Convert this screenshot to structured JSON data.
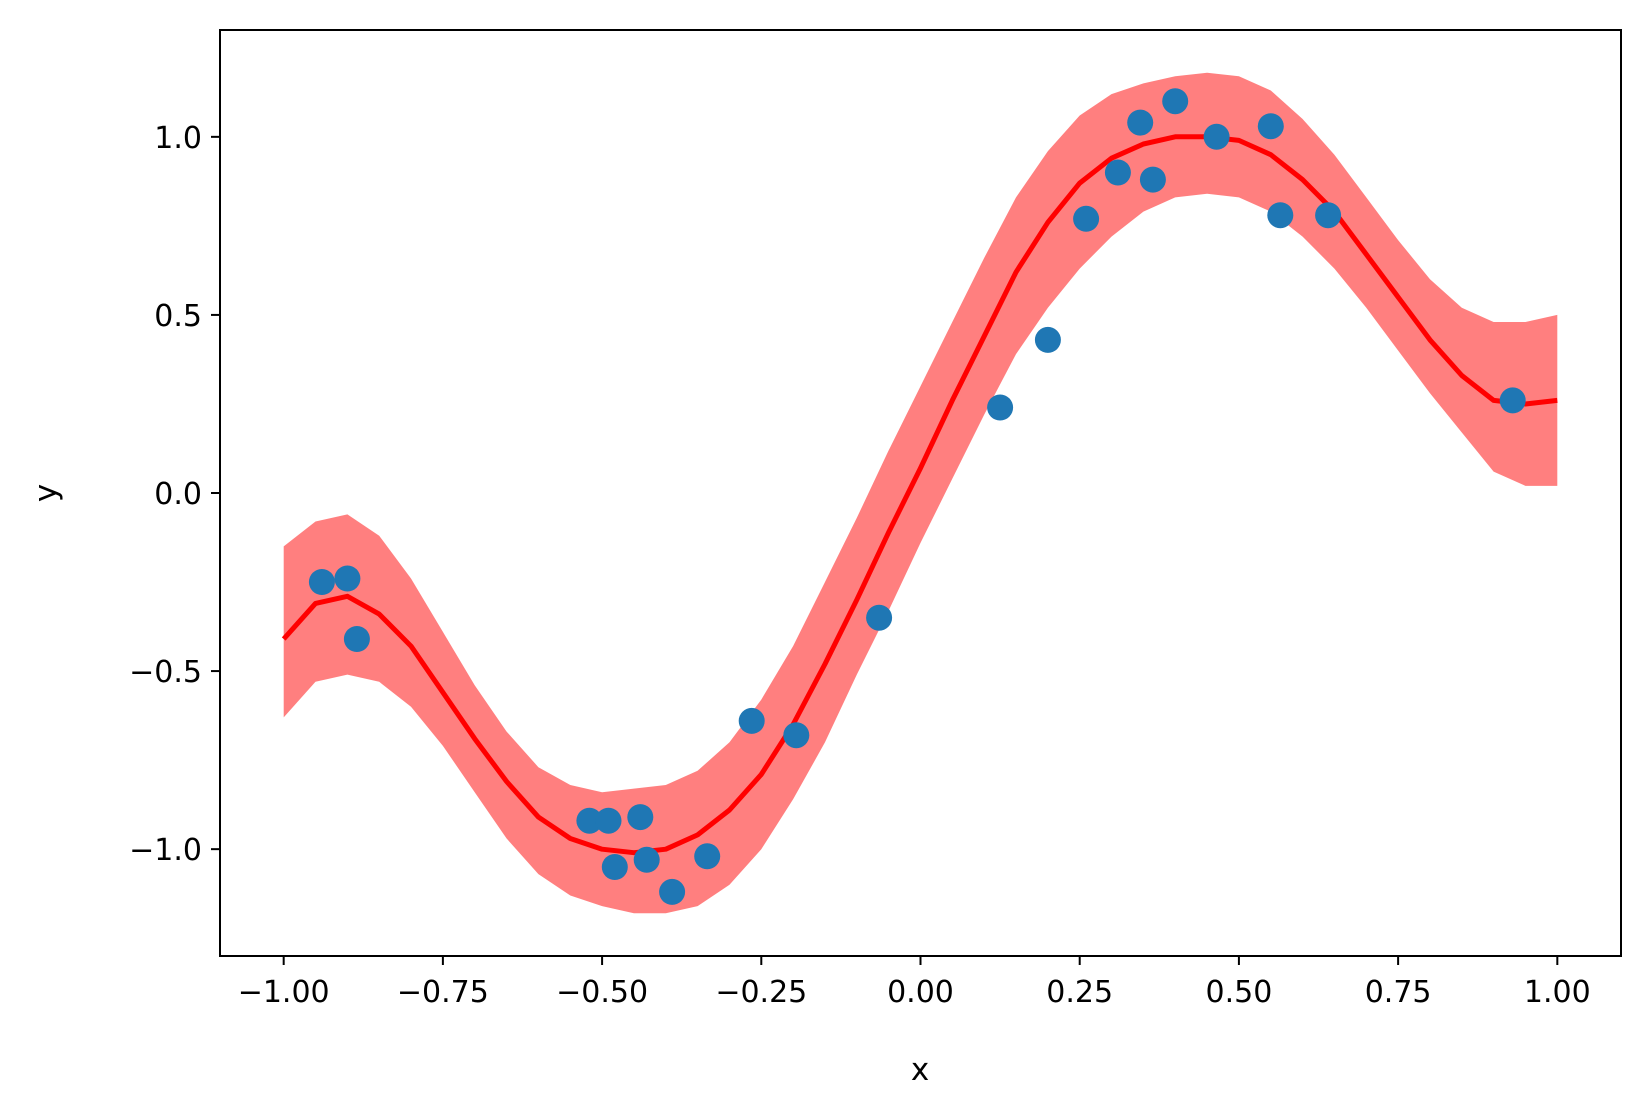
{
  "chart_data": {
    "type": "scatter",
    "title": "",
    "xlabel": "x",
    "ylabel": "y",
    "xlim": [
      -1.1,
      1.1
    ],
    "ylim": [
      -1.3,
      1.3
    ],
    "grid": false,
    "x_ticks": [
      -1.0,
      -0.75,
      -0.5,
      -0.25,
      0.0,
      0.25,
      0.5,
      0.75,
      1.0
    ],
    "x_tick_labels": [
      "−1.00",
      "−0.75",
      "−0.50",
      "−0.25",
      "0.00",
      "0.25",
      "0.50",
      "0.75",
      "1.00"
    ],
    "y_ticks": [
      -1.0,
      -0.5,
      0.0,
      0.5,
      1.0
    ],
    "y_tick_labels": [
      "−1.0",
      "−0.5",
      "0.0",
      "0.5",
      "1.0"
    ],
    "series": [
      {
        "kind": "fill_between",
        "color": "#ff7f7f",
        "x": [
          -1.0,
          -0.95,
          -0.9,
          -0.85,
          -0.8,
          -0.75,
          -0.7,
          -0.65,
          -0.6,
          -0.55,
          -0.5,
          -0.45,
          -0.4,
          -0.35,
          -0.3,
          -0.25,
          -0.2,
          -0.15,
          -0.1,
          -0.05,
          0.0,
          0.05,
          0.1,
          0.15,
          0.2,
          0.25,
          0.3,
          0.35,
          0.4,
          0.45,
          0.5,
          0.55,
          0.6,
          0.65,
          0.7,
          0.75,
          0.8,
          0.85,
          0.9,
          0.95,
          1.0
        ],
        "upper": [
          -0.15,
          -0.08,
          -0.06,
          -0.12,
          -0.24,
          -0.39,
          -0.54,
          -0.67,
          -0.77,
          -0.82,
          -0.84,
          -0.83,
          -0.82,
          -0.78,
          -0.7,
          -0.58,
          -0.43,
          -0.25,
          -0.07,
          0.12,
          0.3,
          0.48,
          0.66,
          0.83,
          0.96,
          1.06,
          1.12,
          1.15,
          1.17,
          1.18,
          1.17,
          1.13,
          1.05,
          0.95,
          0.83,
          0.71,
          0.6,
          0.52,
          0.48,
          0.48,
          0.5
        ],
        "lower": [
          -0.63,
          -0.53,
          -0.51,
          -0.53,
          -0.6,
          -0.71,
          -0.84,
          -0.97,
          -1.07,
          -1.13,
          -1.16,
          -1.18,
          -1.18,
          -1.16,
          -1.1,
          -1.0,
          -0.86,
          -0.7,
          -0.51,
          -0.33,
          -0.14,
          0.04,
          0.22,
          0.39,
          0.52,
          0.63,
          0.72,
          0.79,
          0.83,
          0.84,
          0.83,
          0.79,
          0.72,
          0.63,
          0.52,
          0.4,
          0.28,
          0.17,
          0.06,
          0.02,
          0.02
        ]
      },
      {
        "kind": "line",
        "color": "#ff0000",
        "x": [
          -1.0,
          -0.95,
          -0.9,
          -0.85,
          -0.8,
          -0.75,
          -0.7,
          -0.65,
          -0.6,
          -0.55,
          -0.5,
          -0.45,
          -0.4,
          -0.35,
          -0.3,
          -0.25,
          -0.2,
          -0.15,
          -0.1,
          -0.05,
          0.0,
          0.05,
          0.1,
          0.15,
          0.2,
          0.25,
          0.3,
          0.35,
          0.4,
          0.45,
          0.5,
          0.55,
          0.6,
          0.65,
          0.7,
          0.75,
          0.8,
          0.85,
          0.9,
          0.95,
          1.0
        ],
        "y": [
          -0.41,
          -0.31,
          -0.29,
          -0.34,
          -0.43,
          -0.56,
          -0.69,
          -0.81,
          -0.91,
          -0.97,
          -1.0,
          -1.01,
          -1.0,
          -0.96,
          -0.89,
          -0.79,
          -0.65,
          -0.48,
          -0.3,
          -0.11,
          0.07,
          0.26,
          0.44,
          0.62,
          0.76,
          0.87,
          0.94,
          0.98,
          1.0,
          1.0,
          0.99,
          0.95,
          0.88,
          0.79,
          0.67,
          0.55,
          0.43,
          0.33,
          0.26,
          0.25,
          0.26
        ]
      },
      {
        "kind": "scatter",
        "color": "#1f77b4",
        "x": [
          -0.94,
          -0.9,
          -0.885,
          -0.52,
          -0.49,
          -0.48,
          -0.44,
          -0.43,
          -0.39,
          -0.335,
          -0.265,
          -0.195,
          -0.065,
          0.125,
          0.2,
          0.26,
          0.31,
          0.345,
          0.365,
          0.4,
          0.465,
          0.55,
          0.565,
          0.64,
          0.93
        ],
        "y": [
          -0.25,
          -0.24,
          -0.41,
          -0.92,
          -0.92,
          -1.05,
          -0.91,
          -1.03,
          -1.12,
          -1.02,
          -0.64,
          -0.68,
          -0.35,
          0.24,
          0.43,
          0.77,
          0.9,
          1.04,
          0.88,
          1.1,
          1.0,
          1.03,
          0.78,
          0.78,
          0.26
        ]
      }
    ]
  }
}
